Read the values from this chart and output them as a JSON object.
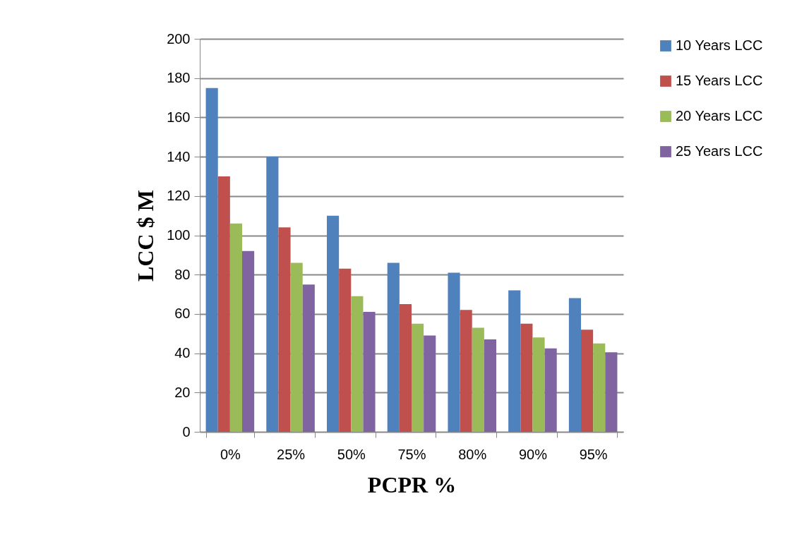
{
  "chart_data": {
    "type": "bar",
    "xlabel": "PCPR %",
    "ylabel": "LCC $ M",
    "categories": [
      "0%",
      "25%",
      "50%",
      "75%",
      "80%",
      "90%",
      "95%"
    ],
    "series": [
      {
        "name": "10 Years LCC",
        "color": "#4f81bd",
        "values": [
          175,
          140,
          110,
          86,
          81,
          72,
          68
        ]
      },
      {
        "name": "15 Years LCC",
        "color": "#c0504d",
        "values": [
          130,
          104,
          83,
          65,
          62,
          55,
          52
        ]
      },
      {
        "name": "20 Years LCC",
        "color": "#9bbb59",
        "values": [
          106,
          86,
          69,
          55,
          53,
          48,
          45
        ]
      },
      {
        "name": "25 Years LCC",
        "color": "#8064a2",
        "values": [
          92,
          75,
          61,
          49,
          47,
          42.5,
          40.5
        ]
      }
    ],
    "ylim": [
      0,
      200
    ],
    "yticks": [
      0,
      20,
      40,
      60,
      80,
      100,
      120,
      140,
      160,
      180,
      200
    ],
    "grid": "y",
    "legend": "right"
  }
}
